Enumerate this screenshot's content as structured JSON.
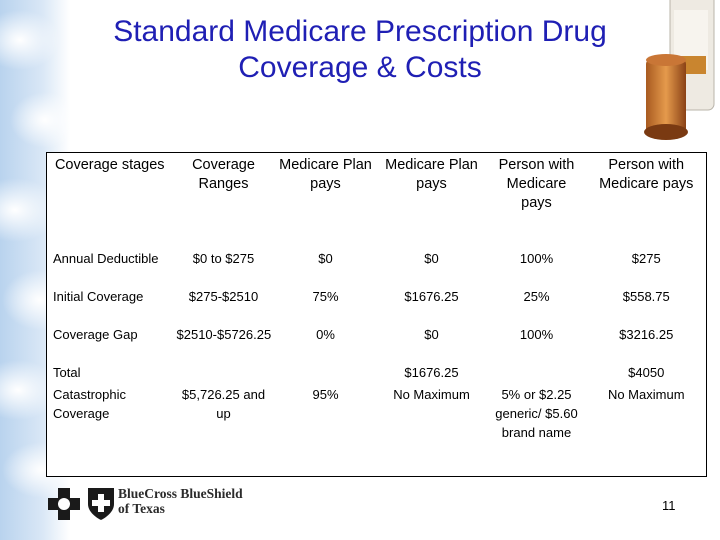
{
  "title_line1": "Standard Medicare Prescription Drug",
  "title_line2": "Coverage & Costs",
  "headers": [
    "Coverage stages",
    "Coverage Ranges",
    "Medicare Plan pays",
    "Medicare Plan pays",
    "Person with Medicare pays",
    "Person with Medicare pays"
  ],
  "rows": [
    [
      "Annual Deductible",
      "$0 to $275",
      "$0",
      "$0",
      "100%",
      "$275"
    ],
    [
      "Initial Coverage",
      "$275-$2510",
      "75%",
      "$1676.25",
      "25%",
      "$558.75"
    ],
    [
      "Coverage Gap",
      "$2510-$5726.25",
      "0%",
      "$0",
      "100%",
      "$3216.25"
    ],
    [
      "Total",
      "",
      "",
      "$1676.25",
      "",
      "$4050"
    ],
    [
      "Catastrophic Coverage",
      "$5,726.25 and up",
      "95%",
      "No Maximum",
      "5% or $2.25 generic/ $5.60 brand name",
      "No Maximum"
    ]
  ],
  "logo": {
    "line1": "BlueCross BlueShield",
    "line2": "of Texas"
  },
  "page_number": "11"
}
